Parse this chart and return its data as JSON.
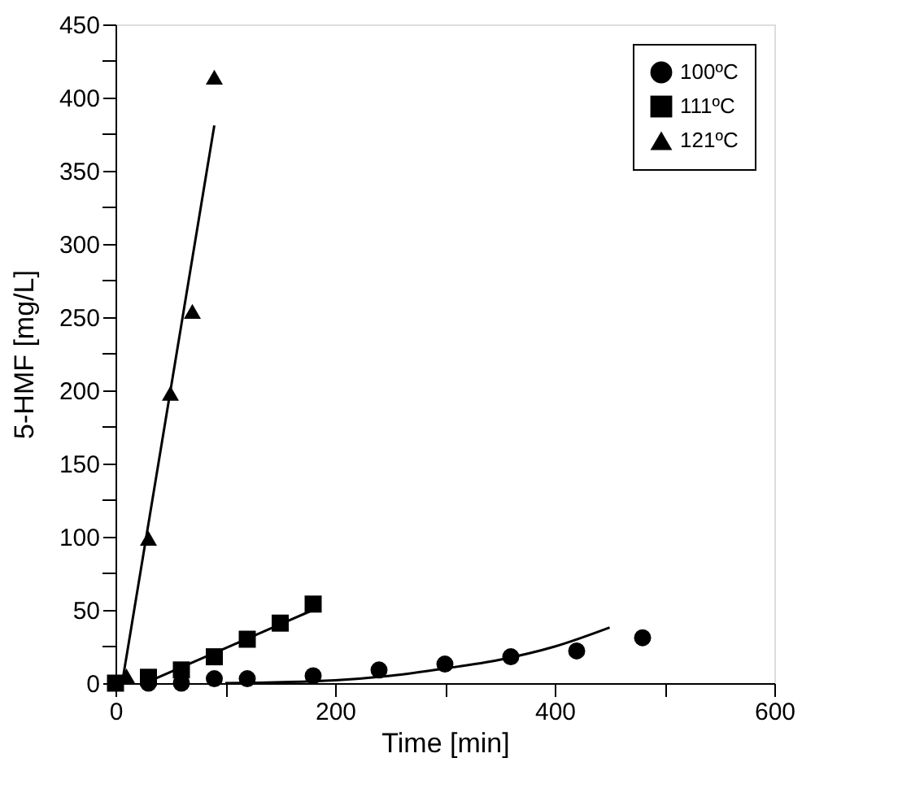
{
  "chart_data": {
    "type": "scatter",
    "xlabel": "Time [min]",
    "ylabel": "5-HMF [mg/L]",
    "xlim": [
      0,
      600
    ],
    "xticks": [
      0,
      {
        "value": 100,
        "label": null
      },
      200,
      {
        "value": 300,
        "label": null
      },
      400,
      {
        "value": 500,
        "label": null
      },
      600
    ],
    "ylim": [
      0,
      450
    ],
    "yticks": [
      0,
      {
        "value": 25,
        "label": null
      },
      50,
      {
        "value": 75,
        "label": null
      },
      100,
      {
        "value": 125,
        "label": null
      },
      150,
      {
        "value": 175,
        "label": null
      },
      200,
      {
        "value": 225,
        "label": null
      },
      250,
      {
        "value": 275,
        "label": null
      },
      300,
      {
        "value": 325,
        "label": null
      },
      350,
      {
        "value": 375,
        "label": null
      },
      400,
      {
        "value": 425,
        "label": null
      },
      450
    ],
    "grid": false,
    "legend": "top right",
    "series": [
      {
        "name": "100ºC",
        "color": "#000000",
        "marker": "circle",
        "x": [
          30,
          60,
          90,
          120,
          180,
          240,
          300,
          360,
          420,
          480
        ],
        "values": [
          0,
          0,
          3,
          3,
          5,
          9,
          13,
          18,
          22,
          31
        ]
      },
      {
        "name": "111ºC",
        "color": "#000000",
        "marker": "square",
        "x": [
          0,
          30,
          60,
          90,
          120,
          150,
          180
        ],
        "values": [
          0,
          4,
          9,
          18,
          30,
          41,
          54
        ]
      },
      {
        "name": "121ºC",
        "color": "#000000",
        "marker": "triangle",
        "x": [
          10,
          30,
          50,
          70,
          90
        ],
        "values": [
          5,
          99,
          198,
          254,
          414
        ]
      },
      {
        "type": "line",
        "color": "#000000",
        "x": [
          100,
          200,
          250,
          300,
          350,
          400,
          450
        ],
        "values": [
          0,
          2,
          5,
          10,
          16,
          25,
          38
        ]
      },
      {
        "type": "line",
        "color": "#000000",
        "x": [
          30,
          180
        ],
        "values": [
          1,
          50
        ]
      },
      {
        "type": "line",
        "color": "#000000",
        "x": [
          6,
          90
        ],
        "values": [
          0,
          381
        ]
      }
    ]
  }
}
